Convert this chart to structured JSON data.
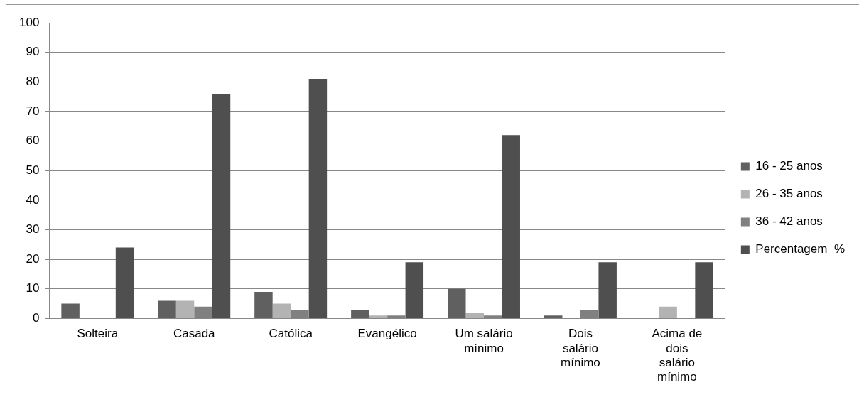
{
  "chart_data": {
    "type": "bar",
    "categories": [
      "Solteira",
      "Casada",
      "Católica",
      "Evangélico",
      "Um salário mínimo",
      "Dois salário mínimo",
      "Acima de dois salário mínimo"
    ],
    "series": [
      {
        "name": "16 - 25 anos",
        "color": "#606060",
        "values": [
          5,
          6,
          9,
          3,
          10,
          1,
          null
        ]
      },
      {
        "name": "26 - 35 anos",
        "color": "#b3b3b3",
        "values": [
          null,
          6,
          5,
          1,
          2,
          null,
          4
        ]
      },
      {
        "name": "36 - 42 anos",
        "color": "#808080",
        "values": [
          null,
          4,
          3,
          1,
          1,
          3,
          null
        ]
      },
      {
        "name": "Percentagem  %",
        "color": "#4f4f4f",
        "values": [
          24,
          76,
          81,
          19,
          62,
          19,
          19
        ]
      }
    ],
    "ylim": [
      0,
      100
    ],
    "yticks": [
      0,
      10,
      20,
      30,
      40,
      50,
      60,
      70,
      80,
      90,
      100
    ],
    "grid": "y",
    "legend": "right"
  }
}
